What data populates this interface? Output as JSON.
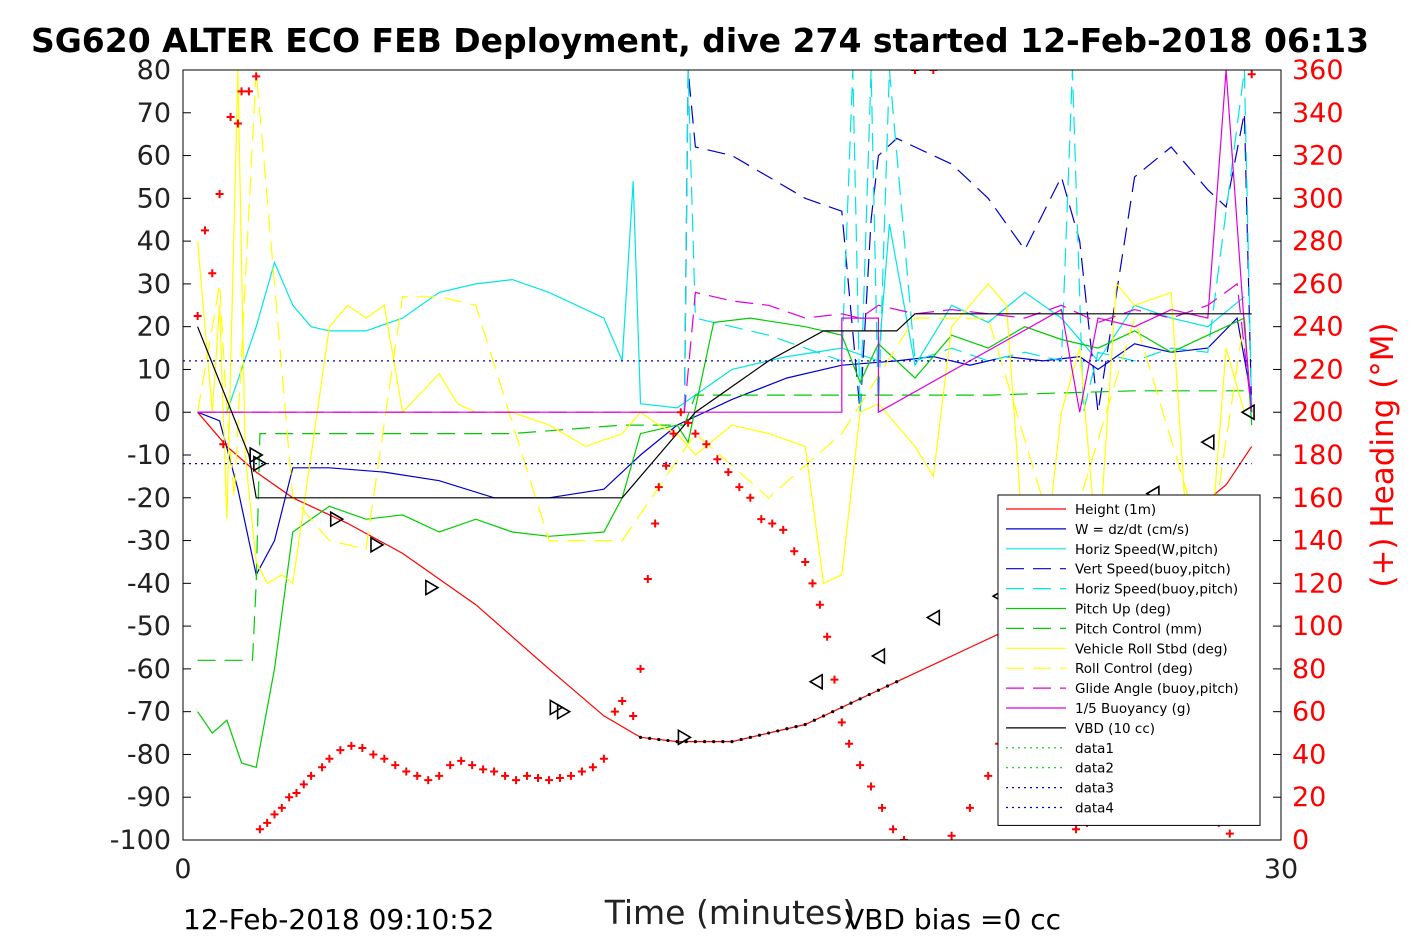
{
  "chart_data": {
    "type": "line",
    "title": "SG620 ALTER ECO FEB Deployment, dive 274 started 12-Feb-2018 06:13",
    "xlabel": "Time (minutes)",
    "ylabel_right": "(+) Heading (°M)",
    "xlim": [
      0,
      30
    ],
    "ylim_left": [
      -100,
      80
    ],
    "ylim_right": [
      0,
      360
    ],
    "x_ticks": [
      "0",
      "30"
    ],
    "y_ticks_left": [
      "80",
      "70",
      "60",
      "50",
      "40",
      "30",
      "20",
      "10",
      "0",
      "-10",
      "-20",
      "-30",
      "-40",
      "-50",
      "-60",
      "-70",
      "-80",
      "-90",
      "-100"
    ],
    "y_ticks_right": [
      "360",
      "340",
      "320",
      "300",
      "280",
      "260",
      "240",
      "220",
      "200",
      "180",
      "160",
      "140",
      "120",
      "100",
      "80",
      "60",
      "40",
      "20",
      "0"
    ],
    "footer_left": "12-Feb-2018 09:10:52",
    "footer_right": "VBD bias =0 cc",
    "legend_position": "right",
    "series": [
      {
        "name": "Height (1m)",
        "color": "#ff0000",
        "dash": "solid",
        "x": [
          0.4,
          1.2,
          2.0,
          3.0,
          4.5,
          6.0,
          8.0,
          10.0,
          11.5,
          12.5,
          13.5,
          15.0,
          17.0,
          18.5,
          20.0,
          21.5,
          23.0,
          24.0,
          25.0,
          26.5,
          27.5,
          28.5,
          29.2
        ],
        "y": [
          0,
          -8,
          -14,
          -20,
          -26,
          -33,
          -45,
          -60,
          -71,
          -76,
          -77,
          -77,
          -73,
          -67,
          -61,
          -55,
          -49,
          -44,
          -38,
          -31,
          -24,
          -17,
          -8
        ]
      },
      {
        "name": "W = dz/dt (cm/s)",
        "color": "#0000cc",
        "dash": "solid",
        "x": [
          0.4,
          1.0,
          1.5,
          2.0,
          2.5,
          3.0,
          4.0,
          5.5,
          7.0,
          8.5,
          10.0,
          11.5,
          12.5,
          13.5,
          15.0,
          16.5,
          18.0,
          19.5,
          20.5,
          21.5,
          22.5,
          23.5,
          24.5,
          25.0,
          26.0,
          27.0,
          28.0,
          28.8,
          29.2
        ],
        "y": [
          0,
          -2,
          -18,
          -38,
          -30,
          -13,
          -13,
          -14,
          -16,
          -20,
          -20,
          -18,
          -10,
          -3,
          3,
          8,
          11,
          12,
          13,
          11,
          13,
          12,
          13,
          10,
          16,
          14,
          15,
          22,
          3
        ]
      },
      {
        "name": "Horiz Speed(W,pitch)",
        "color": "#00e5e5",
        "dash": "solid",
        "x": [
          0.4,
          1.2,
          2.0,
          2.5,
          3.0,
          3.5,
          4.0,
          5.0,
          6.0,
          7.0,
          8.0,
          9.0,
          10.0,
          11.5,
          12.0,
          12.3,
          12.5,
          13.5,
          15.0,
          16.5,
          18.0,
          19.0,
          19.3,
          20.0,
          21.0,
          22.0,
          23.0,
          24.0,
          25.0,
          26.0,
          27.0,
          28.0,
          29.0
        ],
        "y": [
          0,
          0,
          20,
          35,
          25,
          20,
          19,
          19,
          22,
          28,
          30,
          31,
          28,
          22,
          12,
          54,
          2,
          1,
          10,
          13,
          15,
          12,
          44,
          11,
          25,
          21,
          28,
          22,
          12,
          25,
          22,
          20,
          27
        ]
      },
      {
        "name": "Vert Speed(buoy,pitch)",
        "color": "#0000cc",
        "dash": "long",
        "x": [
          13.7,
          13.8,
          14.0,
          15.0,
          16.0,
          17.0,
          18.0,
          18.5,
          18.8,
          19.0,
          19.5,
          20.0,
          21.0,
          22.0,
          23.0,
          24.0,
          24.5,
          25.0,
          26.0,
          27.0,
          28.0,
          28.5,
          29.0,
          29.2
        ],
        "y": [
          0,
          80,
          62,
          60,
          55,
          50,
          47,
          0,
          45,
          60,
          64,
          62,
          58,
          50,
          38,
          55,
          40,
          0,
          55,
          62,
          52,
          48,
          70,
          0
        ]
      },
      {
        "name": "Horiz Speed(buoy,pitch)",
        "color": "#00e5e5",
        "dash": "long",
        "x": [
          13.7,
          13.8,
          14.0,
          15.0,
          16.0,
          17.0,
          18.0,
          18.3,
          18.5,
          18.8,
          19.0,
          19.3,
          20.0,
          21.0,
          22.0,
          23.0,
          24.0,
          24.3,
          24.6,
          25.0,
          26.0,
          27.0,
          28.0,
          29.0,
          29.2
        ],
        "y": [
          0,
          80,
          22,
          20,
          18,
          15,
          12,
          80,
          0,
          80,
          0,
          80,
          12,
          15,
          12,
          14,
          12,
          80,
          0,
          14,
          12,
          15,
          14,
          80,
          0
        ]
      },
      {
        "name": "Pitch Up (deg)",
        "color": "#00cc00",
        "dash": "solid",
        "x": [
          0.4,
          0.8,
          1.2,
          1.6,
          2.0,
          2.5,
          3.0,
          4.0,
          5.0,
          6.0,
          7.0,
          8.0,
          9.0,
          10.0,
          11.5,
          12.0,
          12.5,
          13.5,
          13.8,
          14.5,
          15.5,
          17.0,
          18.0,
          18.5,
          19.0,
          20.0,
          21.0,
          22.0,
          23.0,
          24.0,
          25.0,
          26.0,
          27.0,
          28.0,
          29.0,
          29.2
        ],
        "y": [
          -70,
          -75,
          -72,
          -82,
          -83,
          -60,
          -28,
          -22,
          -25,
          -24,
          -28,
          -25,
          -28,
          -29,
          -28,
          -20,
          -5,
          -3,
          -7,
          21,
          22,
          20,
          18,
          7,
          16,
          8,
          18,
          15,
          20,
          17,
          15,
          19,
          14,
          18,
          22,
          -3
        ]
      },
      {
        "name": "Pitch Control (mm)",
        "color": "#00cc00",
        "dash": "long",
        "x": [
          0.4,
          1.5,
          1.9,
          2.0,
          2.1,
          3.0,
          6.0,
          9.0,
          12.0,
          13.7,
          14.0,
          18.0,
          22.0,
          26.0,
          29.2
        ],
        "y": [
          -58,
          -58,
          -58,
          -40,
          -5,
          -5,
          -5,
          -5,
          -3,
          -3,
          4,
          4,
          4,
          5,
          5
        ]
      },
      {
        "name": "Vehicle Roll Stbd (deg)",
        "color": "#ffff00",
        "dash": "solid",
        "x": [
          0.4,
          0.8,
          1.0,
          1.2,
          1.5,
          1.7,
          2.0,
          2.3,
          2.7,
          3.0,
          3.5,
          4.0,
          4.5,
          5.0,
          5.5,
          6.0,
          7.0,
          7.5,
          8.0,
          9.0,
          10.0,
          11.0,
          12.0,
          12.5,
          13.0,
          13.5,
          14.0,
          15.0,
          16.0,
          17.0,
          17.5,
          18.0,
          18.5,
          19.0,
          19.5,
          20.0,
          20.5,
          21.0,
          22.0,
          22.5,
          23.0,
          23.5,
          24.0,
          24.5,
          25.0,
          25.5,
          26.0,
          27.0,
          27.5,
          28.0,
          28.5,
          29.0
        ],
        "y": [
          40,
          0,
          25,
          -25,
          80,
          -10,
          -35,
          -40,
          -38,
          -40,
          -10,
          20,
          25,
          22,
          25,
          0,
          9,
          2,
          0,
          0,
          -3,
          -8,
          -5,
          0,
          -3,
          -5,
          -10,
          -3,
          -5,
          -8,
          -40,
          -38,
          0,
          2,
          -3,
          -8,
          -15,
          20,
          30,
          25,
          -35,
          -38,
          0,
          15,
          -35,
          30,
          25,
          28,
          -38,
          -40,
          15,
          0
        ]
      },
      {
        "name": "Roll Control (deg)",
        "color": "#ffff00",
        "dash": "long",
        "x": [
          0.4,
          1.0,
          1.2,
          1.4,
          2.0,
          3.0,
          4.0,
          5.0,
          6.0,
          7.0,
          8.0,
          10.0,
          12.0,
          14.0,
          16.0,
          18.0,
          20.0,
          22.0,
          24.0,
          26.0,
          28.0,
          29.0
        ],
        "y": [
          0,
          30,
          0,
          -20,
          80,
          -20,
          -30,
          -32,
          27,
          27,
          25,
          -30,
          -30,
          -5,
          -20,
          -5,
          22,
          22,
          -35,
          22,
          -35,
          22
        ]
      },
      {
        "name": "Glide Angle (buoy,pitch)",
        "color": "#dd00dd",
        "dash": "long",
        "x": [
          0.4,
          2.0,
          4.0,
          6.0,
          8.0,
          10.0,
          12.0,
          13.7,
          14.0,
          15.0,
          16.0,
          17.0,
          18.0,
          18.5,
          19.0,
          20.0,
          21.0,
          22.0,
          23.0,
          24.0,
          25.0,
          26.0,
          27.0,
          28.0,
          28.8,
          29.2
        ],
        "y": [
          0,
          0,
          0,
          0,
          0,
          0,
          0,
          0,
          28,
          26,
          25,
          22,
          23,
          22,
          25,
          23,
          24,
          23,
          22,
          25,
          21,
          24,
          22,
          25,
          30,
          0
        ]
      },
      {
        "name": "1/5 Buoyancy (g)",
        "color": "#dd00dd",
        "dash": "solid",
        "x": [
          0.4,
          18.0,
          18.0,
          19.0,
          19.0,
          24.0,
          24.5,
          25.0,
          26.0,
          27.0,
          28.0,
          28.5,
          29.0,
          29.2
        ],
        "y": [
          0,
          0,
          22,
          22,
          0,
          24,
          0,
          22,
          20,
          24,
          22,
          80,
          20,
          0
        ]
      },
      {
        "name": "VBD (10 cc)",
        "color": "#000000",
        "dash": "solid",
        "x": [
          0.4,
          1.8,
          2.0,
          6.0,
          8.0,
          10.0,
          11.0,
          12.0,
          13.0,
          14.0,
          16.0,
          17.5,
          19.0,
          19.5,
          20.0,
          25.0,
          29.2
        ],
        "y": [
          20,
          -10,
          -20,
          -20,
          -20,
          -20,
          -20,
          -20,
          -10,
          0,
          12,
          19,
          19,
          19,
          23,
          23,
          23
        ]
      },
      {
        "name": "data1",
        "color": "#00cc00",
        "dash": "dot",
        "x": [],
        "y": []
      },
      {
        "name": "data2",
        "color": "#00cc00",
        "dash": "dot",
        "x": [],
        "y": []
      },
      {
        "name": "data3",
        "color": "#0000cc",
        "dash": "dot",
        "x": [
          0,
          29.2
        ],
        "y": [
          12,
          12
        ]
      },
      {
        "name": "data4",
        "color": "#0000cc",
        "dash": "dot",
        "x": [
          0,
          29.2
        ],
        "y": [
          -12,
          -12
        ]
      }
    ],
    "depth_markers": {
      "x": [
        2.0,
        2.1,
        4.2,
        5.3,
        6.8,
        10.2,
        10.4,
        13.7,
        17.3,
        19.0,
        20.5,
        22.3,
        23.5,
        24.5,
        25.5,
        26.5,
        28.0,
        29.1
      ],
      "y": [
        -10,
        -12,
        -25,
        -31,
        -41,
        -69,
        -70,
        -76,
        -63,
        -57,
        -48,
        -43,
        -39,
        -35,
        -28,
        -19,
        -7,
        0
      ],
      "direction": [
        "down",
        "down",
        "down",
        "down",
        "down",
        "down",
        "down",
        "down",
        "up",
        "up",
        "up",
        "up",
        "up",
        "up",
        "up",
        "up",
        "up",
        "up"
      ]
    },
    "heading_points": {
      "axis": "right",
      "color": "#ff0000",
      "x": [
        0.4,
        0.6,
        0.8,
        1.0,
        1.1,
        1.3,
        1.5,
        1.6,
        1.8,
        2.0,
        2.1,
        2.3,
        2.5,
        2.7,
        2.9,
        3.1,
        3.3,
        3.5,
        3.8,
        4.0,
        4.3,
        4.6,
        4.9,
        5.2,
        5.5,
        5.8,
        6.1,
        6.4,
        6.7,
        7.0,
        7.3,
        7.6,
        7.9,
        8.2,
        8.5,
        8.8,
        9.1,
        9.4,
        9.7,
        10.0,
        10.3,
        10.6,
        10.9,
        11.2,
        11.5,
        11.8,
        12.0,
        12.3,
        12.5,
        12.7,
        12.9,
        13.0,
        13.2,
        13.4,
        13.6,
        13.8,
        14.0,
        14.3,
        14.6,
        14.9,
        15.2,
        15.5,
        15.8,
        16.1,
        16.4,
        16.7,
        17.0,
        17.2,
        17.4,
        17.6,
        17.8,
        18.0,
        18.2,
        18.5,
        18.8,
        19.1,
        19.4,
        19.7,
        20.0,
        20.5,
        21.0,
        21.5,
        22.0,
        22.3,
        22.6,
        22.9,
        23.2,
        23.5,
        23.8,
        24.1,
        24.4,
        24.7,
        25.0,
        25.3,
        25.6,
        25.9,
        26.2,
        26.5,
        26.8,
        27.1,
        27.4,
        27.7,
        28.0,
        28.3,
        28.6,
        28.9,
        29.2
      ],
      "y": [
        245,
        285,
        265,
        302,
        185,
        338,
        335,
        350,
        350,
        357,
        5,
        8,
        12,
        15,
        20,
        22,
        26,
        30,
        34,
        38,
        42,
        44,
        43,
        40,
        38,
        35,
        32,
        30,
        28,
        30,
        35,
        37,
        35,
        33,
        32,
        30,
        28,
        30,
        29,
        28,
        29,
        30,
        32,
        34,
        38,
        60,
        65,
        58,
        80,
        122,
        148,
        165,
        175,
        190,
        200,
        195,
        190,
        185,
        178,
        172,
        165,
        160,
        150,
        148,
        145,
        135,
        130,
        120,
        110,
        95,
        75,
        55,
        45,
        35,
        25,
        15,
        5,
        0,
        365,
        365,
        2,
        15,
        30,
        45,
        62,
        68,
        63,
        48,
        30,
        15,
        5,
        8,
        15,
        28,
        40,
        50,
        60,
        62,
        55,
        45,
        25,
        20,
        15,
        8,
        3,
        20,
        358
      ]
    }
  }
}
